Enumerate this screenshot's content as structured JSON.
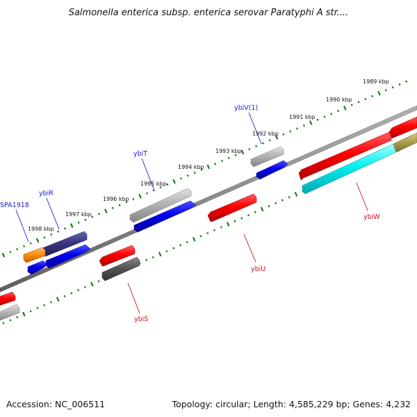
{
  "title": "Salmonella enterica subsp. enterica serovar Paratyphi A str....",
  "footer": {
    "accession": "Accession: NC_006511",
    "summary": "Topology: circular; Length: 4,585,229 bp; Genes: 4,232"
  },
  "kbp_labels": [
    "1989 kbp",
    "1990 kbp",
    "1991 kbp",
    "1992 kbp",
    "1993 kbp",
    "1994 kbp",
    "1995 kbp",
    "1996 kbp",
    "1997 kbp",
    "1998 kbp"
  ],
  "gene_labels": {
    "ybiV1": "ybiV(1)",
    "ybiT": "ybiT",
    "ybiR": "ybiR",
    "spa1918": "SPA1918",
    "ybiW": "ybiW",
    "ybiU": "ybiU",
    "ybiS": "ybiS"
  },
  "colors": {
    "backbone": "#8a8a8a",
    "tick_green": "#1b7a1b",
    "label_blue": "#1a1acc",
    "label_red": "#cc1111",
    "gene_red": "#ff0000",
    "gene_blue": "#0000ee",
    "gene_gray": "#b4b4b4",
    "gene_darkgray": "#555555",
    "gene_navy": "#3a3580",
    "gene_orange": "#ff9010",
    "gene_cyan": "#00f0f0",
    "gene_olive": "#b0a050"
  }
}
